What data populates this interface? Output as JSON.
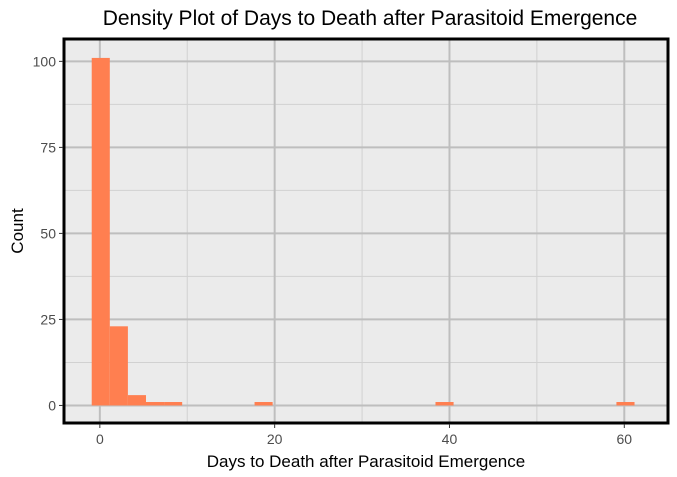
{
  "chart_data": {
    "type": "bar",
    "title": "Density Plot of Days to Death after Parasitoid Emergence",
    "xlabel": "Days to Death after Parasitoid Emergence",
    "ylabel": "Count",
    "xlim": [
      -4.1,
      65.0
    ],
    "ylim": [
      -5.1,
      106.5
    ],
    "x_ticks": [
      0,
      20,
      40,
      60
    ],
    "y_ticks": [
      0,
      25,
      50,
      75,
      100
    ],
    "x_minor_ticks": [
      10,
      30,
      50
    ],
    "y_minor_ticks": [
      12.5,
      37.5,
      62.5,
      87.5
    ],
    "bin_width": 2.07,
    "bins": [
      {
        "x0": -0.93,
        "count": 101
      },
      {
        "x0": 1.14,
        "count": 23
      },
      {
        "x0": 3.21,
        "count": 3
      },
      {
        "x0": 5.28,
        "count": 1
      },
      {
        "x0": 7.35,
        "count": 1
      },
      {
        "x0": 9.42,
        "count": 0
      },
      {
        "x0": 11.49,
        "count": 0
      },
      {
        "x0": 13.56,
        "count": 0
      },
      {
        "x0": 15.63,
        "count": 0
      },
      {
        "x0": 17.7,
        "count": 1
      },
      {
        "x0": 19.77,
        "count": 0
      },
      {
        "x0": 21.84,
        "count": 0
      },
      {
        "x0": 23.91,
        "count": 0
      },
      {
        "x0": 25.98,
        "count": 0
      },
      {
        "x0": 28.05,
        "count": 0
      },
      {
        "x0": 30.12,
        "count": 0
      },
      {
        "x0": 32.19,
        "count": 0
      },
      {
        "x0": 34.26,
        "count": 0
      },
      {
        "x0": 36.33,
        "count": 0
      },
      {
        "x0": 38.4,
        "count": 1
      },
      {
        "x0": 40.47,
        "count": 0
      },
      {
        "x0": 42.54,
        "count": 0
      },
      {
        "x0": 44.61,
        "count": 0
      },
      {
        "x0": 46.68,
        "count": 0
      },
      {
        "x0": 48.75,
        "count": 0
      },
      {
        "x0": 50.82,
        "count": 0
      },
      {
        "x0": 52.89,
        "count": 0
      },
      {
        "x0": 54.96,
        "count": 0
      },
      {
        "x0": 57.03,
        "count": 0
      },
      {
        "x0": 59.1,
        "count": 1
      }
    ],
    "bar_color": "#ff7f50",
    "panel_background": "#ebebeb",
    "major_grid_color": "#bebebe",
    "minor_grid_color": "#d1d1d1",
    "panel_border_color": "#000000",
    "grid": true,
    "legend": "none"
  }
}
